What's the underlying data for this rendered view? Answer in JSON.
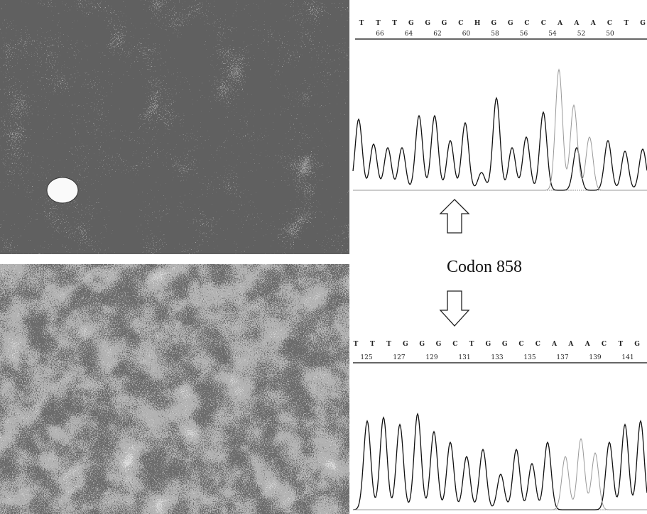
{
  "top_sequence": {
    "bases": [
      "T",
      "T",
      "T",
      "G",
      "G",
      "G",
      "C",
      "H",
      "G",
      "G",
      "C",
      "C",
      "A",
      "A",
      "A",
      "C",
      "T",
      "G"
    ],
    "positions": [
      "66",
      "64",
      "62",
      "60",
      "58",
      "56",
      "54",
      "52",
      "50"
    ]
  },
  "codon_label": "Codon 858",
  "bottom_sequence": {
    "bases": [
      "T",
      "T",
      "T",
      "G",
      "G",
      "G",
      "C",
      "T",
      "G",
      "G",
      "C",
      "C",
      "A",
      "A",
      "A",
      "C",
      "T",
      "G"
    ],
    "positions": [
      "125",
      "127",
      "129",
      "131",
      "133",
      "135",
      "137",
      "139",
      "141"
    ]
  }
}
